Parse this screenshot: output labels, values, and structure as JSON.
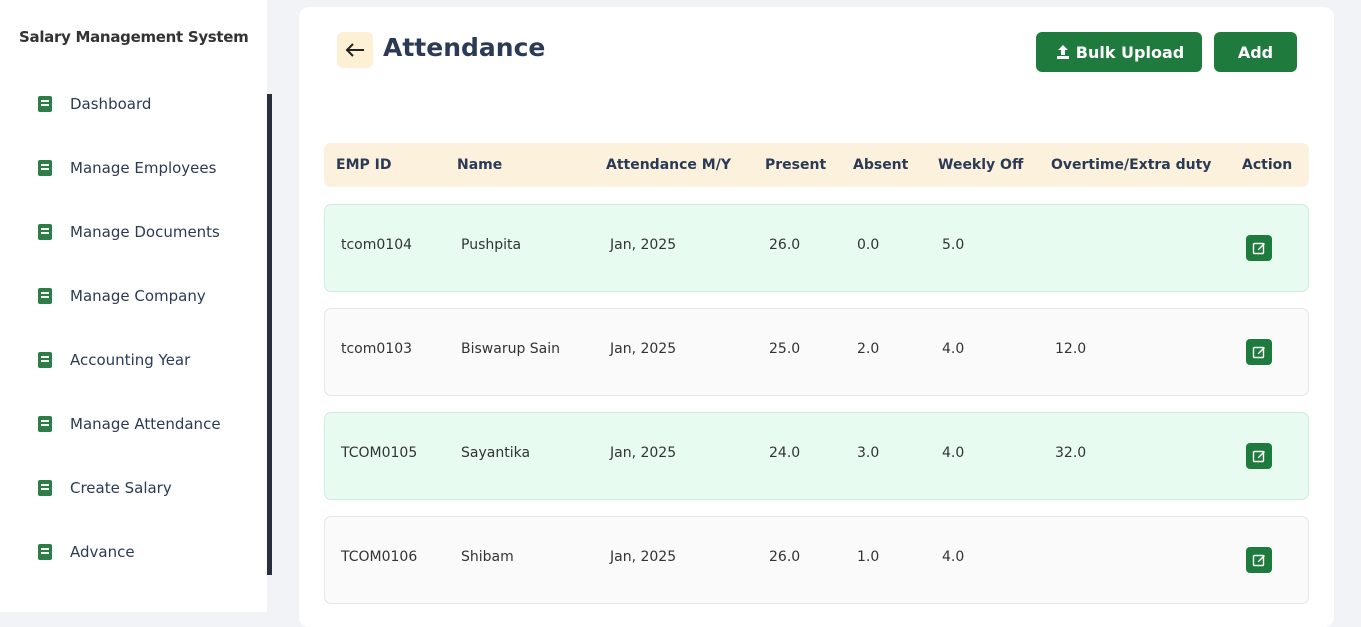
{
  "sidebar": {
    "title": "Salary Management System",
    "menu": [
      "Dashboard",
      "Manage Employees",
      "Manage Documents",
      "Manage Company",
      "Accounting Year",
      "Manage Attendance",
      "Create Salary",
      "Advance"
    ]
  },
  "header": {
    "title": "Attendance",
    "buttons": [
      "Bulk Upload",
      "Add"
    ]
  },
  "table": {
    "columns": [
      "EMP ID",
      "Name",
      "Attendance M/Y",
      "Present",
      "Absent",
      "Weekly Off",
      "Overtime/Extra duty",
      "Action"
    ],
    "rows": [
      [
        "tcom0104",
        "Pushpita",
        "Jan, 2025",
        "26.0",
        "0.0",
        "5.0",
        null
      ],
      [
        "tcom0103",
        "Biswarup Sain",
        "Jan, 2025",
        "25.0",
        "2.0",
        "4.0",
        "12.0"
      ],
      [
        "TCOM0105",
        "Sayantika",
        "Jan, 2025",
        "24.0",
        "3.0",
        "4.0",
        "32.0"
      ],
      [
        "TCOM0106",
        "Shibam",
        "Jan, 2025",
        "26.0",
        "1.0",
        "4.0",
        null
      ]
    ]
  }
}
